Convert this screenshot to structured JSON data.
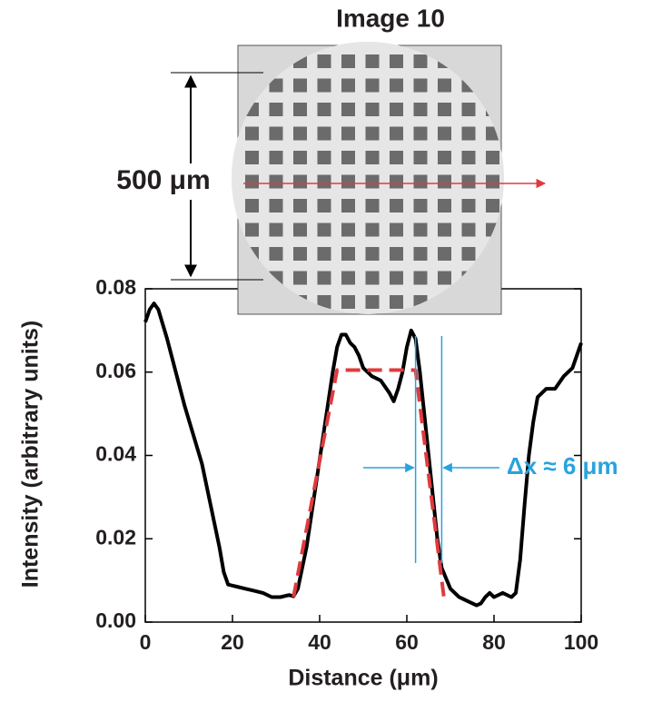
{
  "chart_data": {
    "type": "line",
    "title": "Image 10",
    "scale_label": "500 μm",
    "xlabel": "Distance (μm)",
    "ylabel": "Intensity (arbitrary units)",
    "annotation": "Δx ≈ 6 μm",
    "annotation_color": "#29a3dd",
    "annotation_lines_x": [
      62,
      68
    ],
    "xlim": [
      0,
      100
    ],
    "ylim": [
      0,
      0.08
    ],
    "xticks": [
      0,
      20,
      40,
      60,
      80,
      100
    ],
    "yticks": [
      {
        "value": 0,
        "label": "0.00"
      },
      {
        "value": 0.02,
        "label": "0.02"
      },
      {
        "value": 0.04,
        "label": "0.04"
      },
      {
        "value": 0.06,
        "label": "0.06"
      },
      {
        "value": 0.08,
        "label": "0.08"
      }
    ],
    "series": [
      {
        "color": "#000000",
        "dash": false,
        "x": [
          0,
          1,
          2,
          3,
          5,
          7,
          9,
          11,
          13,
          15,
          17,
          18,
          19,
          21,
          23,
          25,
          27,
          29,
          31,
          33,
          34,
          35,
          37,
          39,
          41,
          43,
          44,
          45,
          46,
          47,
          48,
          49,
          50,
          52,
          54,
          56,
          57,
          58,
          59,
          60,
          61,
          62,
          63,
          64,
          65,
          66,
          67,
          68,
          70,
          72,
          74,
          76,
          77,
          78,
          79,
          80,
          82,
          84,
          85,
          86,
          87,
          88,
          89,
          90,
          92,
          94,
          96,
          98,
          100
        ],
        "values": [
          0.072,
          0.075,
          0.0765,
          0.075,
          0.068,
          0.06,
          0.052,
          0.045,
          0.038,
          0.028,
          0.018,
          0.012,
          0.009,
          0.0085,
          0.008,
          0.0075,
          0.007,
          0.006,
          0.006,
          0.0065,
          0.0062,
          0.008,
          0.018,
          0.032,
          0.046,
          0.06,
          0.066,
          0.069,
          0.069,
          0.067,
          0.066,
          0.064,
          0.061,
          0.059,
          0.058,
          0.055,
          0.053,
          0.056,
          0.06,
          0.066,
          0.07,
          0.068,
          0.06,
          0.05,
          0.04,
          0.03,
          0.02,
          0.013,
          0.008,
          0.006,
          0.005,
          0.004,
          0.0045,
          0.006,
          0.007,
          0.006,
          0.007,
          0.006,
          0.007,
          0.015,
          0.028,
          0.04,
          0.048,
          0.054,
          0.056,
          0.056,
          0.059,
          0.061,
          0.067
        ]
      },
      {
        "color": "#e03a3e",
        "dash": true,
        "x": [
          34,
          44,
          62,
          68.5
        ],
        "values": [
          0.006,
          0.0605,
          0.0605,
          0.006
        ]
      }
    ]
  }
}
